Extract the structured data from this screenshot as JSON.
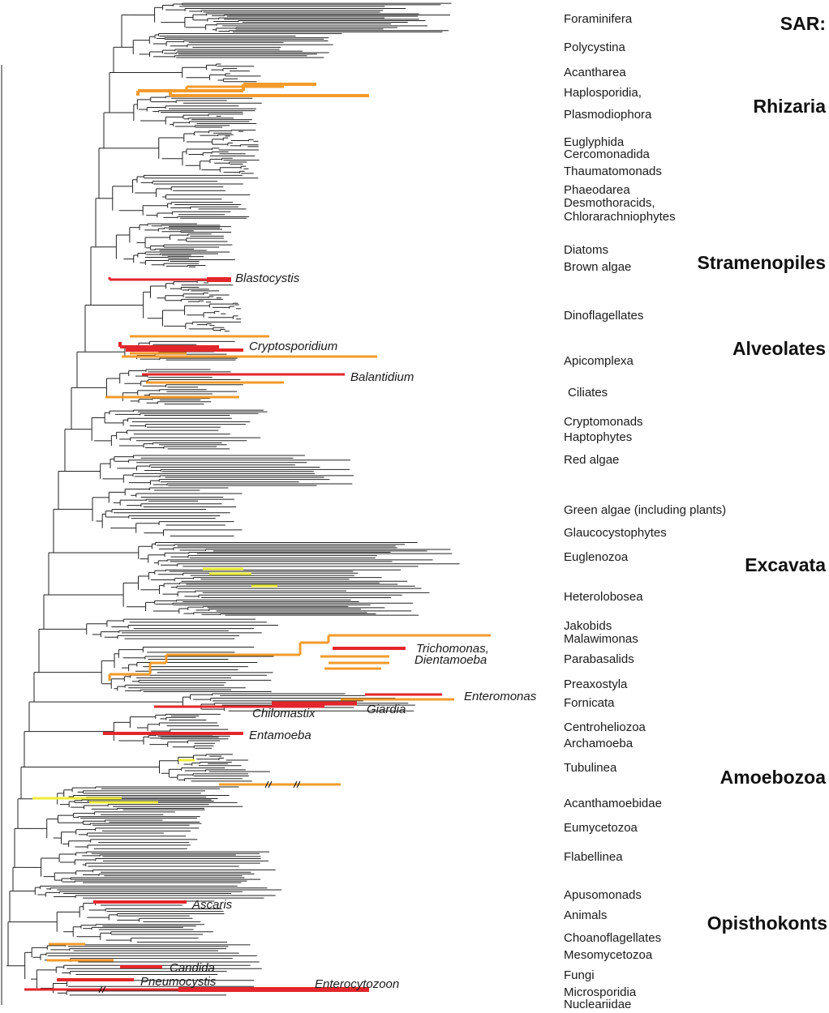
{
  "colors": {
    "pathogen_red": "#e3262b",
    "pathogen_orange": "#f39b2b",
    "pathogen_yellow": "#eded3a",
    "branch": "#222222"
  },
  "supergroups": [
    {
      "key": "sar",
      "label": "SAR:"
    },
    {
      "key": "rhizaria",
      "label": "Rhizaria"
    },
    {
      "key": "stramenopiles",
      "label": "Stramenopiles"
    },
    {
      "key": "alveolates",
      "label": "Alveolates"
    },
    {
      "key": "excavata",
      "label": "Excavata"
    },
    {
      "key": "amoebozoa",
      "label": "Amoebozoa"
    },
    {
      "key": "opisthokonts",
      "label": "Opisthokonts"
    }
  ],
  "clades": [
    "Foraminifera",
    "Polycystina",
    "Acantharea",
    "Haplosporidia,",
    "Plasmodiophora",
    "Euglyphida",
    "Cercomonadida",
    "Thaumatomonads",
    "Phaeodarea",
    "Desmothoracids,",
    "Chlorarachniophytes",
    "Diatoms",
    "Brown algae",
    "Dinoflagellates",
    "Apicomplexa",
    "Ciliates",
    "Cryptomonads",
    "Haptophytes",
    "Red algae",
    "Green algae (including plants)",
    "Glaucocystophytes",
    "Euglenozoa",
    "Heterolobosea",
    "Jakobids",
    "Malawimonas",
    "Parabasalids",
    "Preaxostyla",
    "Fornicata",
    "Centroheliozoa",
    "Archamoeba",
    "Tubulinea",
    "Acanthamoebidae",
    "Eumycetozoa",
    "Flabellinea",
    "Apusomonads",
    "Animals",
    "Choanoflagellates",
    "Mesomycetozoa",
    "Fungi",
    "Microsporidia",
    "Nucleariidae"
  ],
  "taxa": [
    "Blastocystis",
    "Cryptosporidium",
    "Balantidium",
    "Trichomonas,",
    "Dientamoeba",
    "Enteromonas",
    "Chilomastix",
    "Giardia",
    "Entamoeba",
    "Ascaris",
    "Candida",
    "Pneumocystis",
    "Enterocytozoon"
  ]
}
